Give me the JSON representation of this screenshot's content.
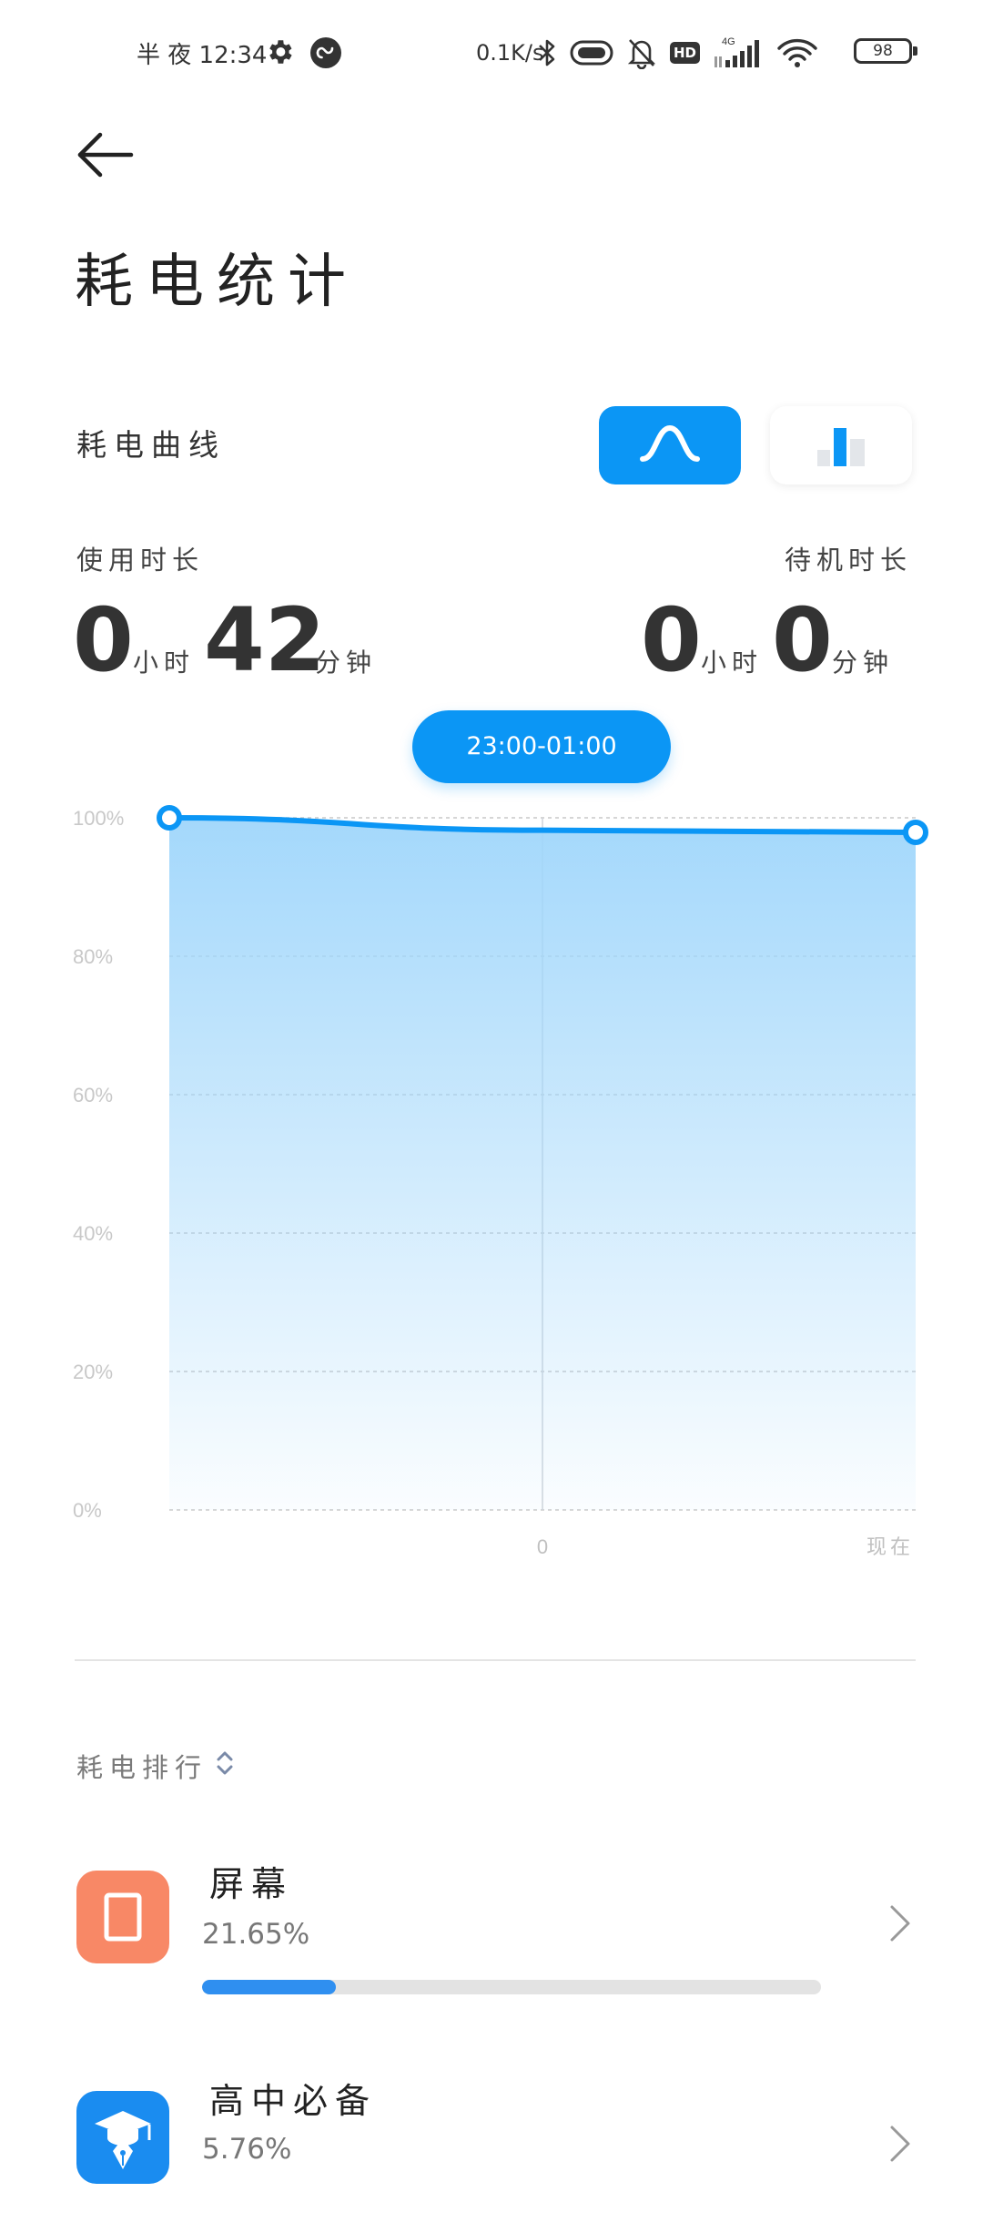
{
  "status_bar": {
    "time": "半 夜 12:34",
    "network_speed": "0.1K/s",
    "signal_label": "4G",
    "hd_label": "HD",
    "battery": "98",
    "icons": [
      "gear-icon",
      "app-icon",
      "bluetooth-icon",
      "vibrate-icon",
      "bell-off-icon",
      "hd-icon",
      "cell-signal-icon",
      "wifi-icon",
      "battery-icon"
    ]
  },
  "header": {
    "title": "耗电统计"
  },
  "curve_section": {
    "label": "耗电曲线",
    "toggle_selected": "curve",
    "accent_color": "#0b96f5"
  },
  "usage": {
    "label": "使用时长",
    "hours": "0",
    "hours_unit": "小时",
    "minutes": "42",
    "minutes_unit": "分钟"
  },
  "standby": {
    "label": "待机时长",
    "hours": "0",
    "hours_unit": "小时",
    "minutes": "0",
    "minutes_unit": "分钟"
  },
  "time_range": "23:00-01:00",
  "chart_data": {
    "type": "area",
    "x": [
      "23:00",
      "0",
      "现在"
    ],
    "x_tick_labels": [
      "0",
      "现在"
    ],
    "series": [
      {
        "values": [
          100,
          98.2,
          97.9
        ]
      }
    ],
    "y_ticks": [
      "100%",
      "80%",
      "60%",
      "40%",
      "20%",
      "0%"
    ],
    "ylim": [
      0,
      100
    ],
    "grid": true
  },
  "ranking": {
    "label": "耗电排行",
    "items": [
      {
        "name": "屏幕",
        "percent": "21.65%",
        "value": 21.65,
        "color": "#f88866",
        "icon": "screen-icon"
      },
      {
        "name": "高中必备",
        "percent": "5.76%",
        "value": 5.76,
        "color": "#1a8cf0",
        "icon": "graduation-pen-icon"
      }
    ]
  }
}
